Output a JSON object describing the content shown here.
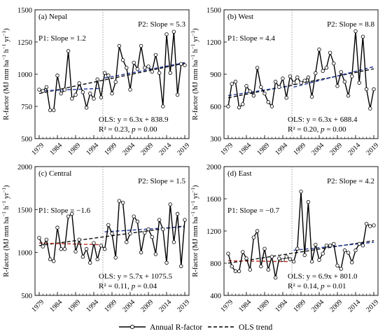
{
  "figure": {
    "legend": {
      "annual_label": "Annual R-factor",
      "ols_label": "OLS trend"
    },
    "ylabel": {
      "prefix": "R-factor (MJ mm ha",
      "sup1": "−1",
      "mid1": " h",
      "sup2": "−1",
      "mid2": " yr",
      "sup3": "−1",
      "suffix": ")"
    }
  },
  "chart_data": [
    {
      "type": "line",
      "title": "(a) Nepal",
      "x": [
        1979,
        1980,
        1981,
        1982,
        1983,
        1984,
        1985,
        1986,
        1987,
        1988,
        1989,
        1990,
        1991,
        1992,
        1993,
        1994,
        1995,
        1996,
        1997,
        1998,
        1999,
        2000,
        2001,
        2002,
        2003,
        2004,
        2005,
        2006,
        2007,
        2008,
        2009,
        2010,
        2011,
        2012,
        2013,
        2014,
        2015,
        2016,
        2017,
        2018,
        2019
      ],
      "series": [
        {
          "name": "Annual R-factor",
          "values": [
            880,
            870,
            900,
            720,
            720,
            990,
            850,
            880,
            1180,
            810,
            840,
            930,
            860,
            740,
            850,
            810,
            960,
            820,
            1010,
            990,
            850,
            940,
            1220,
            1110,
            1050,
            880,
            1090,
            1040,
            1220,
            1050,
            1060,
            1020,
            1150,
            1010,
            750,
            1310,
            1010,
            1330,
            840,
            1080,
            1070
          ]
        }
      ],
      "ylim": [
        500,
        1500
      ],
      "yticks": [
        500,
        750,
        1000,
        1250,
        1500
      ],
      "xticks": [
        1979,
        1984,
        1989,
        1994,
        2004,
        2009,
        2014,
        2019
      ],
      "xticks_mid": "1999",
      "break_year": 1996.5,
      "p1_label": "P1: Slope = 1.2",
      "p2_label": "P2: Slope = 5.3",
      "p1_trend": [
        1979,
        870,
        1996,
        890
      ],
      "p2_trend": [
        1997,
        970,
        2019,
        1090
      ],
      "ols_trend": [
        1979,
        850,
        2019,
        1085
      ],
      "ols_eq": "OLS: y = 6.3x + 838.9",
      "r2_text": "R² = 0.23, ",
      "p_value": "= 0.00",
      "p1_color": "#2a3f9c",
      "p2_color": "#2a3f9c"
    },
    {
      "type": "line",
      "title": "(b) West",
      "x": [
        1979,
        1980,
        1981,
        1982,
        1983,
        1984,
        1985,
        1986,
        1987,
        1988,
        1989,
        1990,
        1991,
        1992,
        1993,
        1994,
        1995,
        1996,
        1997,
        1998,
        1999,
        2000,
        2001,
        2002,
        2003,
        2004,
        2005,
        2006,
        2007,
        2008,
        2009,
        2010,
        2011,
        2012,
        2013,
        2014,
        2015,
        2016,
        2017,
        2018,
        2019
      ],
      "series": [
        {
          "name": "Annual R-factor",
          "values": [
            600,
            810,
            830,
            590,
            620,
            790,
            740,
            700,
            960,
            780,
            720,
            640,
            600,
            830,
            780,
            860,
            680,
            880,
            820,
            870,
            820,
            840,
            870,
            690,
            910,
            1130,
            930,
            960,
            1100,
            1000,
            790,
            920,
            830,
            700,
            880,
            1300,
            820,
            1250,
            760,
            580,
            760
          ]
        }
      ],
      "ylim": [
        300,
        1500
      ],
      "yticks": [
        300,
        600,
        900,
        1200,
        1500
      ],
      "xticks": [
        1979,
        1984,
        1989,
        1994,
        2004,
        2009,
        2014,
        2019
      ],
      "xticks_mid": "1999",
      "break_year": 1996.5,
      "p1_label": "P1: Slope = 4.4",
      "p2_label": "P2: Slope = 8.8",
      "p1_trend": [
        1979,
        700,
        1996,
        790
      ],
      "p2_trend": [
        1997,
        780,
        2019,
        970
      ],
      "ols_trend": [
        1979,
        680,
        2019,
        950
      ],
      "ols_eq": "OLS: y = 6.3x + 688.4",
      "r2_text": "R² = 0.20, ",
      "p_value": "= 0.00",
      "p1_color": "#2a3f9c",
      "p2_color": "#2a3f9c"
    },
    {
      "type": "line",
      "title": "(c) Central",
      "x": [
        1979,
        1980,
        1981,
        1982,
        1983,
        1984,
        1985,
        1986,
        1987,
        1988,
        1989,
        1990,
        1991,
        1992,
        1993,
        1994,
        1995,
        1996,
        1997,
        1998,
        1999,
        2000,
        2001,
        2002,
        2003,
        2004,
        2005,
        2006,
        2007,
        2008,
        2009,
        2010,
        2011,
        2012,
        2013,
        2014,
        2015,
        2016,
        2017,
        2018,
        2019
      ],
      "series": [
        {
          "name": "Annual R-factor",
          "values": [
            1170,
            1070,
            1150,
            920,
            900,
            1290,
            1040,
            1040,
            1420,
            1450,
            1010,
            1150,
            950,
            1040,
            880,
            1110,
            920,
            1080,
            1040,
            1320,
            1220,
            940,
            1600,
            1580,
            1120,
            1220,
            1420,
            1360,
            1000,
            1230,
            1270,
            1180,
            980,
            1380,
            1270,
            880,
            1560,
            1120,
            1450,
            840,
            1380
          ]
        }
      ],
      "ylim": [
        500,
        2000
      ],
      "yticks": [
        500,
        1000,
        1500,
        2000
      ],
      "xticks": [
        1979,
        1984,
        1989,
        1994,
        2004,
        2009,
        2014,
        2019
      ],
      "xticks_mid": "1999",
      "break_year": 1996.5,
      "p1_label": "P1: Slope = −1.6",
      "p2_label": "P2: Slope = 1.5",
      "p1_trend": [
        1979,
        1110,
        1996,
        1090
      ],
      "p2_trend": [
        1997,
        1240,
        2019,
        1300
      ],
      "ols_trend": [
        1979,
        1080,
        2019,
        1310
      ],
      "ols_eq": "OLS: y = 5.7x + 1075.5",
      "r2_text": "R² = 0.11, ",
      "p_value": "= 0.04",
      "p1_color": "#c0392b",
      "p2_color": "#2a3f9c"
    },
    {
      "type": "line",
      "title": "(d) East",
      "x": [
        1979,
        1980,
        1981,
        1982,
        1983,
        1984,
        1985,
        1986,
        1987,
        1988,
        1989,
        1990,
        1991,
        1992,
        1993,
        1994,
        1995,
        1996,
        1997,
        1998,
        1999,
        2000,
        2001,
        2002,
        2003,
        2004,
        2005,
        2006,
        2007,
        2008,
        2009,
        2010,
        2011,
        2012,
        2013,
        2014,
        2015,
        2016,
        2017,
        2018,
        2019
      ],
      "series": [
        {
          "name": "Annual R-factor",
          "values": [
            920,
            760,
            700,
            700,
            940,
            860,
            720,
            1120,
            1200,
            760,
            980,
            720,
            880,
            620,
            860,
            840,
            880,
            850,
            820,
            980,
            1690,
            900,
            1560,
            820,
            1030,
            840,
            920,
            1020,
            1020,
            1040,
            770,
            730,
            960,
            930,
            810,
            960,
            1040,
            1020,
            1290,
            1260,
            1270
          ]
        }
      ],
      "ylim": [
        400,
        2000
      ],
      "yticks": [
        400,
        800,
        1200,
        1600,
        2000
      ],
      "xticks": [
        1979,
        1984,
        1989,
        1994,
        2004,
        2009,
        2014,
        2019
      ],
      "xticks_mid": "1999",
      "break_year": 1996.5,
      "p1_label": "P1: Slope = −0.7",
      "p2_label": "P2: Slope = 4.2",
      "p1_trend": [
        1979,
        830,
        1996,
        820
      ],
      "p2_trend": [
        1997,
        960,
        2019,
        1060
      ],
      "ols_trend": [
        1979,
        800,
        2019,
        1080
      ],
      "ols_eq": "OLS: y = 6.9x + 801.0",
      "r2_text": "R² = 0.14, ",
      "p_value": "= 0.01",
      "p1_color": "#c0392b",
      "p2_color": "#2a3f9c"
    }
  ]
}
